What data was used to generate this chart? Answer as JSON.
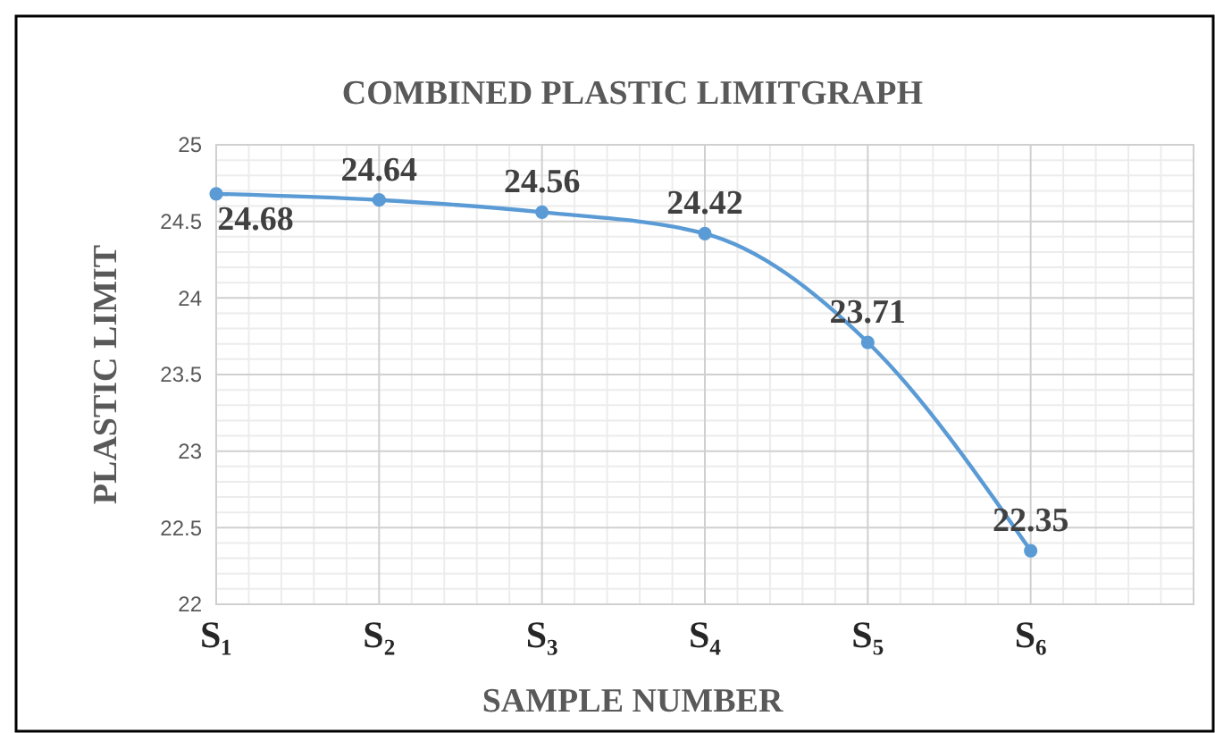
{
  "chart_data": {
    "type": "line",
    "title": "COMBINED PLASTIC LIMITGRAPH",
    "xlabel": "SAMPLE NUMBER",
    "ylabel": "PLASTIC LIMIT",
    "categories": [
      "S₁",
      "S₂",
      "S₃",
      "S₄",
      "S₅",
      "S₆",
      null
    ],
    "series": [
      {
        "color": "#5b9bd5",
        "values": [
          24.68,
          24.64,
          24.56,
          24.42,
          23.71,
          22.35,
          null
        ]
      }
    ],
    "ylim": [
      22,
      25
    ],
    "yticks": [
      22,
      22.5,
      23,
      23.5,
      24,
      24.5,
      25
    ],
    "grid": true,
    "marker": "circle",
    "data_labels": true
  }
}
